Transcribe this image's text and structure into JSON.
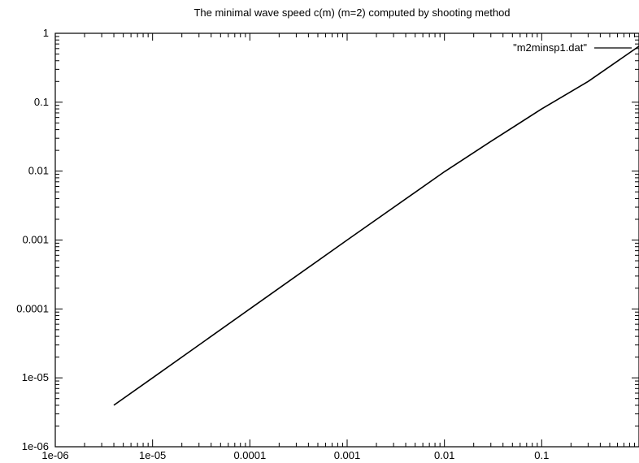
{
  "chart_data": {
    "type": "line",
    "title": "The minimal wave speed c(m) (m=2) computed  by  shooting method",
    "xlabel": "",
    "ylabel": "",
    "x_scale": "log",
    "y_scale": "log",
    "xlim": [
      1e-06,
      1
    ],
    "ylim": [
      1e-06,
      1
    ],
    "grid": false,
    "legend_position": "top-right",
    "x_ticks": [
      {
        "value": 1e-06,
        "label": "1e-06"
      },
      {
        "value": 1e-05,
        "label": "1e-05"
      },
      {
        "value": 0.0001,
        "label": "0.0001"
      },
      {
        "value": 0.001,
        "label": "0.001"
      },
      {
        "value": 0.01,
        "label": "0.01"
      },
      {
        "value": 0.1,
        "label": "0.1"
      }
    ],
    "y_ticks": [
      {
        "value": 1e-06,
        "label": "1e-06"
      },
      {
        "value": 1e-05,
        "label": "1e-05"
      },
      {
        "value": 0.0001,
        "label": "0.0001"
      },
      {
        "value": 0.001,
        "label": "0.001"
      },
      {
        "value": 0.01,
        "label": "0.01"
      },
      {
        "value": 0.1,
        "label": "0.1"
      },
      {
        "value": 1,
        "label": "1"
      }
    ],
    "series": [
      {
        "name": "\"m2minsp1.dat\"",
        "color": "#000000",
        "x": [
          4e-06,
          1e-05,
          0.0001,
          0.001,
          0.01,
          0.03,
          0.1,
          0.3,
          1
        ],
        "y": [
          4e-06,
          1e-05,
          0.0001,
          0.001,
          0.0098,
          0.027,
          0.08,
          0.2,
          0.65
        ]
      }
    ]
  }
}
